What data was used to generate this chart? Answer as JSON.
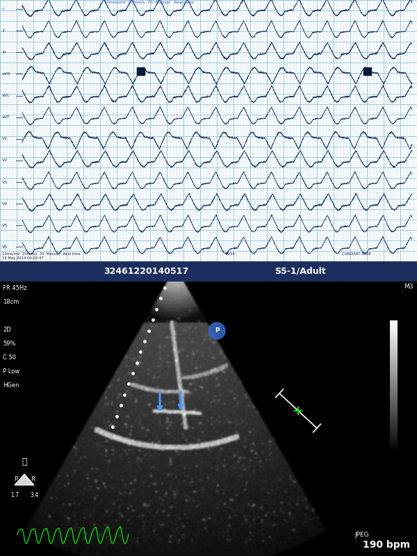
{
  "ecg_bg_color": "#cce5f0",
  "ecg_grid_minor_color": "#aad0e8",
  "ecg_grid_major_color": "#88bbd8",
  "ecg_line_color": "#1a3a6b",
  "echo_bg_color": "#000000",
  "echo_header_color": "#1c2e5e",
  "echo_id": "32461220140517",
  "echo_probe": "S5-1/Adult",
  "echo_fr": "FR 45Hz",
  "echo_depth": "18cm",
  "echo_mode": "2D",
  "echo_gain": "59%",
  "echo_c": "C 50",
  "echo_p": "P Low",
  "echo_hgen": "HGen",
  "echo_m3": "M3",
  "echo_pr_left": "1.7",
  "echo_pr_right": "3.4",
  "echo_jpeg": "JPEG",
  "echo_bpm": "190 bpm",
  "ecg_leads": [
    "I",
    "II",
    "III",
    "aVR",
    "aVL",
    "aVF",
    "V1",
    "V2",
    "V3",
    "V4",
    "V5",
    "V6"
  ],
  "ecg_bottom_text": "10ms/mV  25mm/s  70  Manual   Real time",
  "ecg_date": "18 May 2014 00:02:47",
  "ecg_device": "CARDIART 8888",
  "figsize": [
    6.0,
    8.0
  ],
  "dpi": 100
}
